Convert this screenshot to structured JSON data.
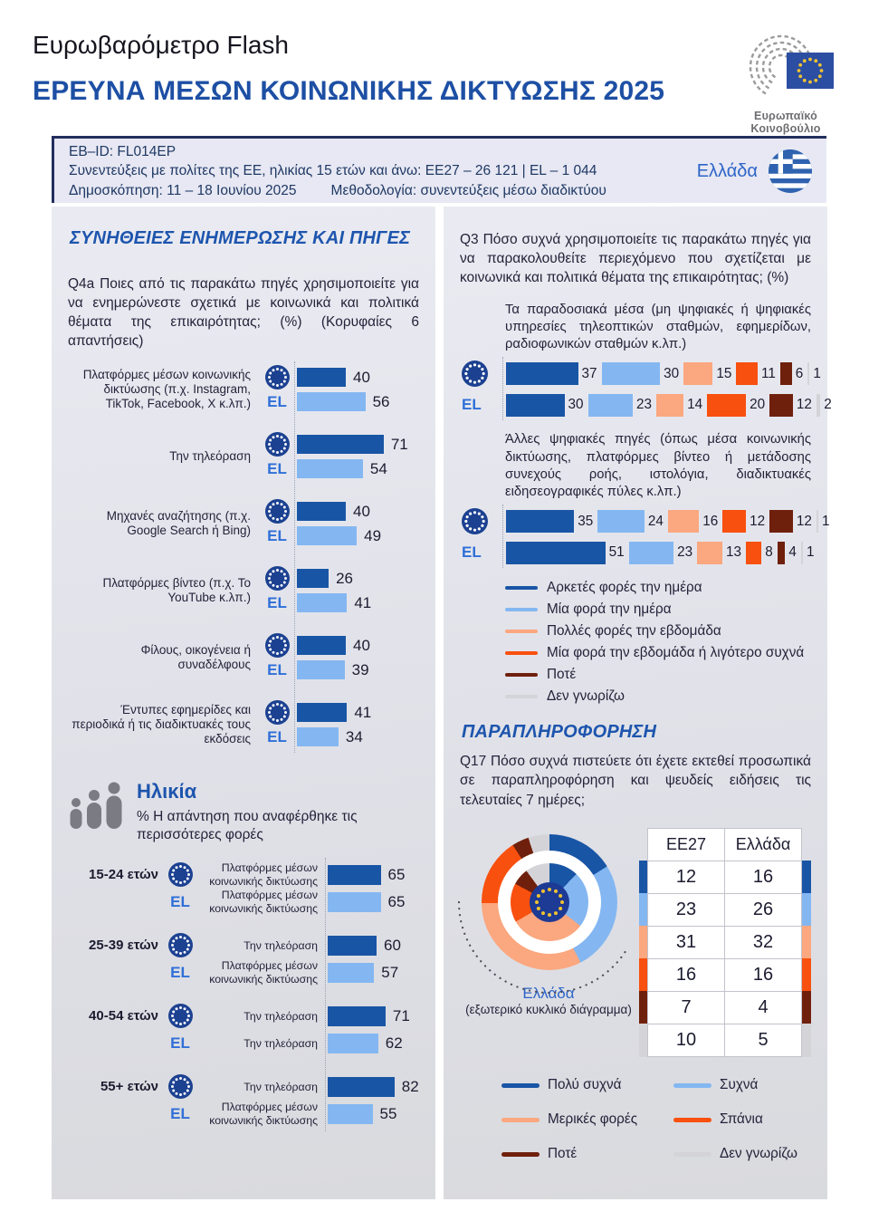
{
  "colors": {
    "accent_blue": "#1d4fa4",
    "bar_dark_blue": "#1955A5",
    "bar_light_blue": "#84B7F1",
    "salmon": "#FBA77F",
    "orange": "#F8500E",
    "brown": "#6F200C",
    "gray": "#D4D4D8",
    "panel_bg": "#E0E1E8",
    "navy_text": "#1F3864",
    "freq_palette": [
      "#1955A5",
      "#84B7F1",
      "#FBA77F",
      "#F8500E",
      "#6F200C",
      "#D4D4D8"
    ]
  },
  "header": {
    "suptitle": "Ευρωβαρόμετρο Flash",
    "title": "ΕΡΕΥΝΑ ΜΕΣΩΝ ΚΟΙΝΩΝΙΚΗΣ ΔΙΚΤΥΩΣΗΣ 2025",
    "logo_caption": "Ευρωπαϊκό Κοινοβούλιο"
  },
  "banner": {
    "eb_id": "EB–ID: FL014EP",
    "audience": "Συνεντεύξεις με πολίτες της ΕΕ, ηλικίας 15 ετών και άνω: EE27 – 26 121 | EL – 1 044",
    "poll": "Δημοσκόπηση: 11 – 18 Ιουνίου 2025",
    "methodology": "Μεθοδολογία: συνεντεύξεις μέσω διαδικτύου",
    "country": "Ελλάδα"
  },
  "habits": {
    "section_title": "ΣΥΝΗΘΕΙΕΣ ΕΝΗΜΕΡΩΣΗΣ ΚΑΙ ΠΗΓΕΣ",
    "question": "Q4a Ποιες από τις παρακάτω πηγές χρησιμοποιείτε για να ενημερώνεστε σχετικά με κοινωνικά και πολιτικά θέματα της επικαιρότητας; (%) (Κορυφαίες 6 απαντήσεις)",
    "el_label": "EL",
    "rows": [
      {
        "label": "Πλατφόρμες μέσων κοινωνικής δικτύωσης (π.χ. Instagram, TikTok, Facebook, X κ.λπ.)",
        "eu": 40,
        "el": 56
      },
      {
        "label": "Την τηλεόραση",
        "eu": 71,
        "el": 54
      },
      {
        "label": "Μηχανές αναζήτησης (π.χ. Google Search ή Bing)",
        "eu": 40,
        "el": 49
      },
      {
        "label": "Πλατφόρμες βίντεο (π.χ. Το YouTube κ.λπ.)",
        "eu": 26,
        "el": 41
      },
      {
        "label": "Φίλους, οικογένεια ή συναδέλφους",
        "eu": 40,
        "el": 39
      },
      {
        "label": "Έντυπες εφημερίδες και περιοδικά ή τις διαδικτυακές τους εκδόσεις",
        "eu": 41,
        "el": 34
      }
    ]
  },
  "age": {
    "title": "Ηλικία",
    "subtitle": "% Η απάντηση που αναφέρθηκε τις περισσότερες φορές",
    "el_label": "EL",
    "groups": [
      {
        "age": "15-24 ετών",
        "eu_answer": "Πλατφόρμες μέσων κοινωνικής δικτύωσης",
        "eu": 65,
        "el_answer": "Πλατφόρμες μέσων κοινωνικής δικτύωσης",
        "el": 65
      },
      {
        "age": "25-39 ετών",
        "eu_answer": "Την τηλεόραση",
        "eu": 60,
        "el_answer": "Πλατφόρμες μέσων κοινωνικής δικτύωσης",
        "el": 57
      },
      {
        "age": "40-54 ετών",
        "eu_answer": "Την τηλεόραση",
        "eu": 71,
        "el_answer": "Την τηλεόραση",
        "el": 62
      },
      {
        "age": "55+ ετών",
        "eu_answer": "Την τηλεόραση",
        "eu": 82,
        "el_answer": "Πλατφόρμες μέσων κοινωνικής δικτύωσης",
        "el": 55
      }
    ]
  },
  "q3": {
    "question": "Q3 Πόσο συχνά χρησιμοποιείτε τις παρακάτω πηγές για να παρακολουθείτε περιεχόμενο που σχετίζεται με κοινωνικά και πολιτικά θέματα της επικαιρότητας; (%)",
    "el_label": "EL",
    "traditional_heading": "Τα παραδοσιακά μέσα (μη ψηφιακές ή ψηφιακές υπηρεσίες τηλεοπτικών σταθμών, εφημερίδων, ραδιοφωνικών σταθμών κ.λπ.)",
    "traditional": {
      "eu": [
        37,
        30,
        15,
        11,
        6,
        1
      ],
      "el": [
        30,
        23,
        14,
        20,
        12,
        2
      ]
    },
    "digital_heading": "Άλλες ψηφιακές πηγές (όπως μέσα κοινωνικής δικτύωσης, πλατφόρμες βίντεο ή μετάδοσης συνεχούς ροής, ιστολόγια, διαδικτυακές ειδησεογραφικές πύλες κ.λπ.)",
    "digital": {
      "eu": [
        35,
        24,
        16,
        12,
        12,
        1
      ],
      "el": [
        51,
        23,
        13,
        8,
        4,
        1
      ]
    },
    "legend": [
      "Αρκετές φορές την ημέρα",
      "Μία φορά την ημέρα",
      "Πολλές φορές την εβδομάδα",
      "Μία φορά την εβδομάδα ή λιγότερο συχνά",
      "Ποτέ",
      "Δεν γνωρίζω"
    ]
  },
  "disinfo": {
    "section_title": "ΠΑΡΑΠΛΗΡΟΦΟΡΗΣΗ",
    "question": "Q17 Πόσο συχνά πιστεύετε ότι έχετε εκτεθεί προσωπικά σε παραπληροφόρηση και ψευδείς ειδήσεις τις τελευταίες 7 ημέρες;",
    "donut_caption_country": "Ελλάδα",
    "donut_caption_note": "(εξωτερικό κυκλικό διάγραμμα)",
    "table": {
      "headers": [
        "EE27",
        "Ελλάδα"
      ],
      "eu": [
        12,
        23,
        31,
        16,
        7,
        10
      ],
      "el": [
        16,
        26,
        32,
        16,
        4,
        5
      ]
    },
    "legend": [
      "Πολύ συχνά",
      "Συχνά",
      "Μερικές φορές",
      "Σπάνια",
      "Ποτέ",
      "Δεν γνωρίζω"
    ]
  },
  "chart_data": [
    {
      "type": "bar",
      "title": "Q4a Ποιες από τις παρακάτω πηγές χρησιμοποιείτε για να ενημερώνεστε σχετικά με κοινωνικά και πολιτικά θέματα της επικαιρότητας; (%) (Κορυφαίες 6 απαντήσεις)",
      "categories": [
        "Πλατφόρμες μέσων κοινωνικής δικτύωσης (π.χ. Instagram, TikTok, Facebook, X κ.λπ.)",
        "Την τηλεόραση",
        "Μηχανές αναζήτησης (π.χ. Google Search ή Bing)",
        "Πλατφόρμες βίντεο (π.χ. Το YouTube κ.λπ.)",
        "Φίλους, οικογένεια ή συναδέλφους",
        "Έντυπες εφημερίδες και περιοδικά ή τις διαδικτυακές τους εκδόσεις"
      ],
      "series": [
        {
          "name": "EU27",
          "values": [
            40,
            71,
            40,
            26,
            40,
            41
          ]
        },
        {
          "name": "EL",
          "values": [
            56,
            54,
            49,
            41,
            39,
            34
          ]
        }
      ],
      "xlim": [
        0,
        100
      ],
      "grid": false,
      "orientation": "horizontal"
    },
    {
      "type": "bar",
      "subtype": "stacked",
      "title": "Q3 — Τα παραδοσιακά μέσα (μη ψηφιακές ή ψηφιακές υπηρεσίες τηλεοπτικών σταθμών, εφημερίδων, ραδιοφωνικών σταθμών κ.λπ.)",
      "categories": [
        "Αρκετές φορές την ημέρα",
        "Μία φορά την ημέρα",
        "Πολλές φορές την εβδομάδα",
        "Μία φορά την εβδομάδα ή λιγότερο συχνά",
        "Ποτέ",
        "Δεν γνωρίζω"
      ],
      "series": [
        {
          "name": "EU27",
          "values": [
            37,
            30,
            15,
            11,
            6,
            1
          ]
        },
        {
          "name": "EL",
          "values": [
            30,
            23,
            14,
            20,
            12,
            2
          ]
        }
      ],
      "orientation": "horizontal"
    },
    {
      "type": "bar",
      "subtype": "stacked",
      "title": "Q3 — Άλλες ψηφιακές πηγές (όπως μέσα κοινωνικής δικτύωσης, πλατφόρμες βίντεο ή μετάδοσης συνεχούς ροής, ιστολόγια, διαδικτυακές ειδησεογραφικές πύλες κ.λπ.)",
      "categories": [
        "Αρκετές φορές την ημέρα",
        "Μία φορά την ημέρα",
        "Πολλές φορές την εβδομάδα",
        "Μία φορά την εβδομάδα ή λιγότερο συχνά",
        "Ποτέ",
        "Δεν γνωρίζω"
      ],
      "series": [
        {
          "name": "EU27",
          "values": [
            35,
            24,
            16,
            12,
            12,
            1
          ]
        },
        {
          "name": "EL",
          "values": [
            51,
            23,
            13,
            8,
            4,
            1
          ]
        }
      ],
      "orientation": "horizontal"
    },
    {
      "type": "pie",
      "subtype": "double-donut",
      "title": "Q17 Πόσο συχνά πιστεύετε ότι έχετε εκτεθεί προσωπικά σε παραπληροφόρηση και ψευδείς ειδήσεις τις τελευταίες 7 ημέρες;",
      "categories": [
        "Πολύ συχνά",
        "Συχνά",
        "Μερικές φορές",
        "Σπάνια",
        "Ποτέ",
        "Δεν γνωρίζω"
      ],
      "series": [
        {
          "name": "EE27",
          "ring": "inner",
          "values": [
            12,
            23,
            31,
            16,
            7,
            10
          ]
        },
        {
          "name": "Ελλάδα",
          "ring": "outer",
          "values": [
            16,
            26,
            32,
            16,
            4,
            5
          ]
        }
      ],
      "note": "Ελλάδα (εξωτερικό κυκλικό διάγραμμα)"
    },
    {
      "type": "bar",
      "title": "Ηλικία — % Η απάντηση που αναφέρθηκε τις περισσότερες φορές",
      "categories": [
        "15-24 ετών",
        "25-39 ετών",
        "40-54 ετών",
        "55+ ετών"
      ],
      "series": [
        {
          "name": "EU27",
          "values": [
            65,
            60,
            71,
            82
          ],
          "labels": [
            "Πλατφόρμες μέσων κοινωνικής δικτύωσης",
            "Την τηλεόραση",
            "Την τηλεόραση",
            "Την τηλεόραση"
          ]
        },
        {
          "name": "EL",
          "values": [
            65,
            57,
            62,
            55
          ],
          "labels": [
            "Πλατφόρμες μέσων κοινωνικής δικτύωσης",
            "Πλατφόρμες μέσων κοινωνικής δικτύωσης",
            "Την τηλεόραση",
            "Πλατφόρμες μέσων κοινωνικής δικτύωσης"
          ]
        }
      ],
      "orientation": "horizontal"
    }
  ]
}
